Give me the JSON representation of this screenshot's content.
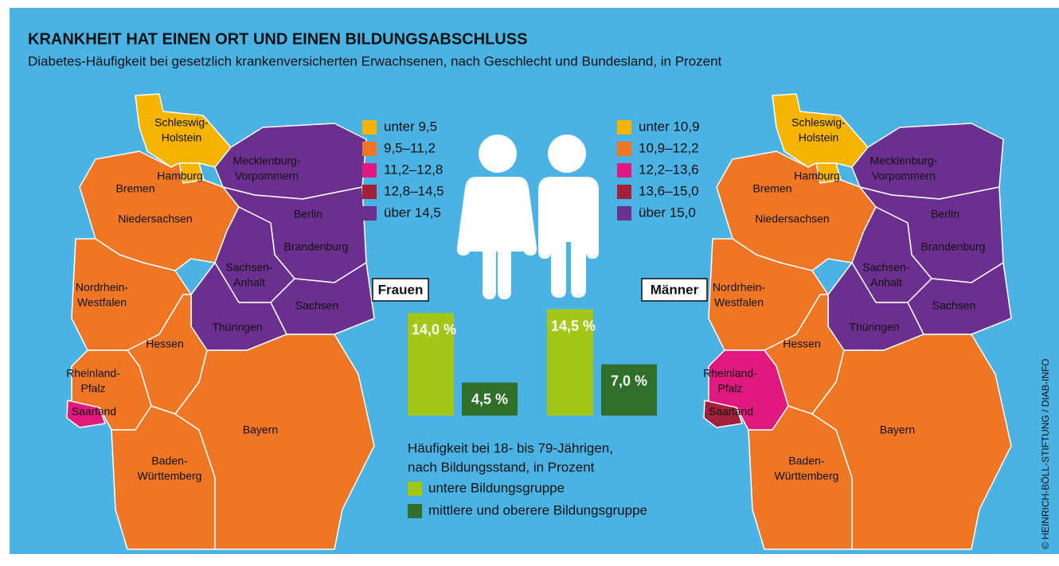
{
  "title": "KRANKHEIT HAT EINEN ORT UND EINEN BILDUNGSABSCHLUSS",
  "subtitle": "Diabetes-Häufigkeit bei gesetzlich krankenversicherten Erwachsenen, nach Geschlecht und Bundesland, in Prozent",
  "credit": "© HEINRICH-BÖLL-STIFTUNG / DIAB-INFO",
  "maps": [
    {
      "label": "Frauen",
      "legend": [
        {
          "label": "unter 9,5",
          "color": "#f5b400"
        },
        {
          "label": "9,5–11,2",
          "color": "#ee7624"
        },
        {
          "label": "11,2–12,8",
          "color": "#e1197e"
        },
        {
          "label": "12,8–14,5",
          "color": "#a3203a"
        },
        {
          "label": "über 14,5",
          "color": "#6b2f8f"
        }
      ],
      "states": [
        {
          "lines": [
            "Schleswig-",
            "Holstein"
          ],
          "class": 0
        },
        {
          "lines": [
            "Hamburg"
          ],
          "class": 0
        },
        {
          "lines": [
            "Mecklenburg-",
            "Vorpommern"
          ],
          "class": 4
        },
        {
          "lines": [
            "Bremen"
          ],
          "class": 1
        },
        {
          "lines": [
            "Niedersachsen"
          ],
          "class": 1
        },
        {
          "lines": [
            "Berlin"
          ],
          "class": 1
        },
        {
          "lines": [
            "Brandenburg"
          ],
          "class": 4
        },
        {
          "lines": [
            "Sachsen-",
            "Anhalt"
          ],
          "class": 4
        },
        {
          "lines": [
            "Sachsen"
          ],
          "class": 4
        },
        {
          "lines": [
            "Thüringen"
          ],
          "class": 4
        },
        {
          "lines": [
            "Nordrhein-",
            "Westfalen"
          ],
          "class": 1
        },
        {
          "lines": [
            "Hessen"
          ],
          "class": 1
        },
        {
          "lines": [
            "Rheinland-",
            "Pfalz"
          ],
          "class": 1
        },
        {
          "lines": [
            "Saarland"
          ],
          "class": 2
        },
        {
          "lines": [
            "Baden-",
            "Württemberg"
          ],
          "class": 1
        },
        {
          "lines": [
            "Bayern"
          ],
          "class": 1
        }
      ]
    },
    {
      "label": "Männer",
      "legend": [
        {
          "label": "unter 10,9",
          "color": "#f5b400"
        },
        {
          "label": "10,9–12,2",
          "color": "#ee7624"
        },
        {
          "label": "12,2–13,6",
          "color": "#e1197e"
        },
        {
          "label": "13,6–15,0",
          "color": "#a3203a"
        },
        {
          "label": "über 15,0",
          "color": "#6b2f8f"
        }
      ],
      "states": [
        {
          "lines": [
            "Schleswig-",
            "Holstein"
          ],
          "class": 0
        },
        {
          "lines": [
            "Hamburg"
          ],
          "class": 0
        },
        {
          "lines": [
            "Mecklenburg-",
            "Vorpommern"
          ],
          "class": 4
        },
        {
          "lines": [
            "Bremen"
          ],
          "class": 1
        },
        {
          "lines": [
            "Niedersachsen"
          ],
          "class": 1
        },
        {
          "lines": [
            "Berlin"
          ],
          "class": 1
        },
        {
          "lines": [
            "Brandenburg"
          ],
          "class": 4
        },
        {
          "lines": [
            "Sachsen-",
            "Anhalt"
          ],
          "class": 4
        },
        {
          "lines": [
            "Sachsen"
          ],
          "class": 4
        },
        {
          "lines": [
            "Thüringen"
          ],
          "class": 4
        },
        {
          "lines": [
            "Nordrhein-",
            "Westfalen"
          ],
          "class": 1
        },
        {
          "lines": [
            "Hessen"
          ],
          "class": 1
        },
        {
          "lines": [
            "Rheinland-",
            "Pfalz"
          ],
          "class": 2
        },
        {
          "lines": [
            "Saarland"
          ],
          "class": 3
        },
        {
          "lines": [
            "Baden-",
            "Württemberg"
          ],
          "class": 1
        },
        {
          "lines": [
            "Bayern"
          ],
          "class": 1
        }
      ]
    }
  ],
  "chart_data": {
    "type": "bar",
    "caption": [
      "Häufigkeit bei 18- bis 79-Jährigen,",
      "nach Bildungsstand, in Prozent"
    ],
    "series": [
      {
        "name": "untere Bildungsgruppe",
        "color": "#a3c617",
        "values": [
          14.0,
          14.5
        ],
        "value_labels": [
          "14,0 %",
          "14,5 %"
        ]
      },
      {
        "name": "mittlere und oberere Bildungsgruppe",
        "color": "#2f6f2a",
        "values": [
          4.5,
          7.0
        ],
        "value_labels": [
          "4,5 %",
          "7,0 %"
        ]
      }
    ]
  }
}
